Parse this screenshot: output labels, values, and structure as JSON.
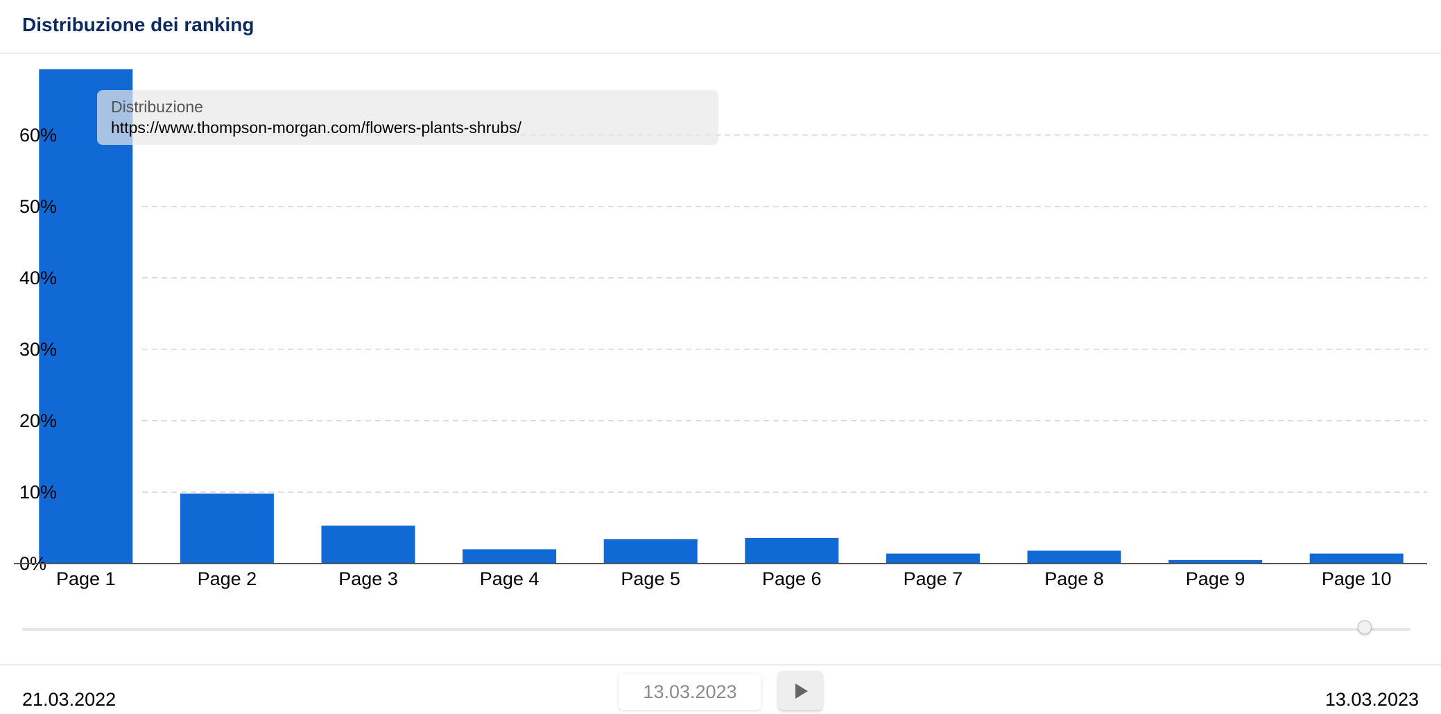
{
  "header": {
    "title": "Distribuzione dei ranking"
  },
  "tooltip": {
    "title": "Distribuzione",
    "url": "https://www.thompson-morgan.com/flowers-plants-shrubs/"
  },
  "timeline": {
    "start_date": "21.03.2022",
    "current_date": "13.03.2023",
    "end_date": "13.03.2023",
    "position": 1.0,
    "play_icon": "play-icon"
  },
  "colors": {
    "bar": "#1169d6",
    "title": "#0d2a5e"
  },
  "chart_data": {
    "type": "bar",
    "title": "Distribuzione dei ranking",
    "xlabel": "",
    "ylabel": "",
    "categories": [
      "Page 1",
      "Page 2",
      "Page 3",
      "Page 4",
      "Page 5",
      "Page 6",
      "Page 7",
      "Page 8",
      "Page 9",
      "Page 10"
    ],
    "values": [
      69.2,
      9.8,
      5.3,
      2.0,
      3.4,
      3.6,
      1.4,
      1.8,
      0.5,
      1.4
    ],
    "ylim": [
      0,
      69.2
    ],
    "yticks": [
      0,
      10,
      20,
      30,
      40,
      50,
      60
    ],
    "ytick_labels": [
      "0%",
      "10%",
      "20%",
      "30%",
      "40%",
      "50%",
      "60%"
    ],
    "grid": true
  }
}
